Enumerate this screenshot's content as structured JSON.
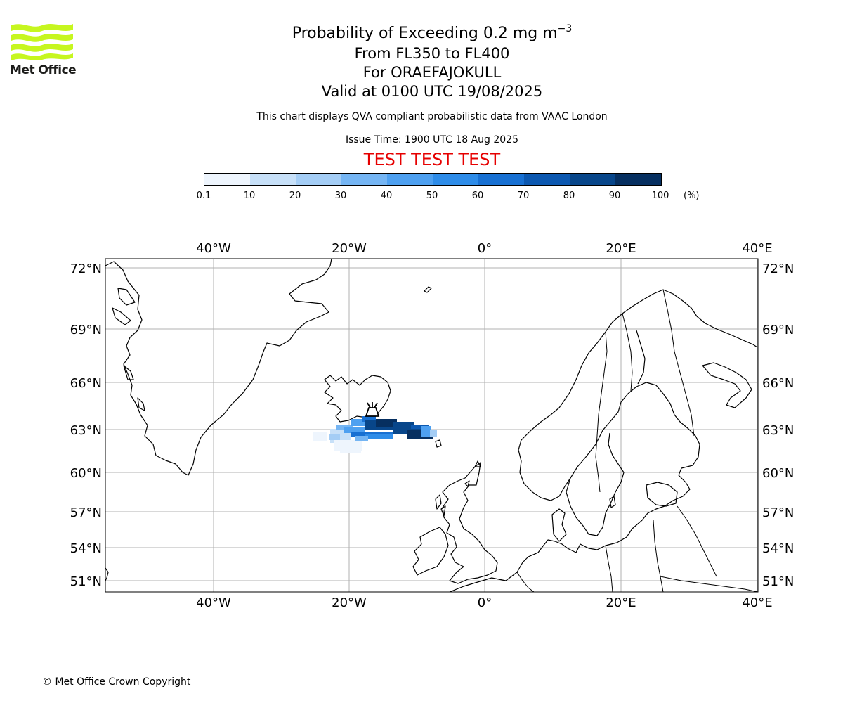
{
  "header": {
    "logo_text": "Met Office",
    "title_main": "Probability of Exceeding 0.2 mg m",
    "title_sup": "−3",
    "title_levels": "From FL350 to FL400",
    "title_volcano": "For ORAEFAJOKULL",
    "title_valid": "Valid at 0100 UTC 19/08/2025",
    "subtitle": "This chart displays QVA compliant probabilistic data from VAAC London",
    "issue_time": "Issue Time: 1900 UTC 18 Aug 2025",
    "test_banner": "TEST TEST TEST"
  },
  "colorbar": {
    "ticks": [
      "0.1",
      "10",
      "20",
      "30",
      "40",
      "50",
      "60",
      "70",
      "80",
      "90",
      "100"
    ],
    "unit": "(%)",
    "colors": [
      "#eef5fd",
      "#c7e0f8",
      "#a4cdf5",
      "#75b5f3",
      "#4ea0f0",
      "#2e8ce8",
      "#1870d2",
      "#0c58b0",
      "#08468a",
      "#062f60"
    ]
  },
  "map": {
    "lon_labels": [
      "40°W",
      "20°W",
      "0°",
      "20°E",
      "40°E"
    ],
    "lat_labels": [
      "72°N",
      "69°N",
      "66°N",
      "63°N",
      "60°N",
      "57°N",
      "54°N",
      "51°N"
    ],
    "gridline_color": "#b0b0b0",
    "volcano_marker": "volcano-icon"
  },
  "footer": {
    "copyright": "© Met Office Crown Copyright"
  }
}
